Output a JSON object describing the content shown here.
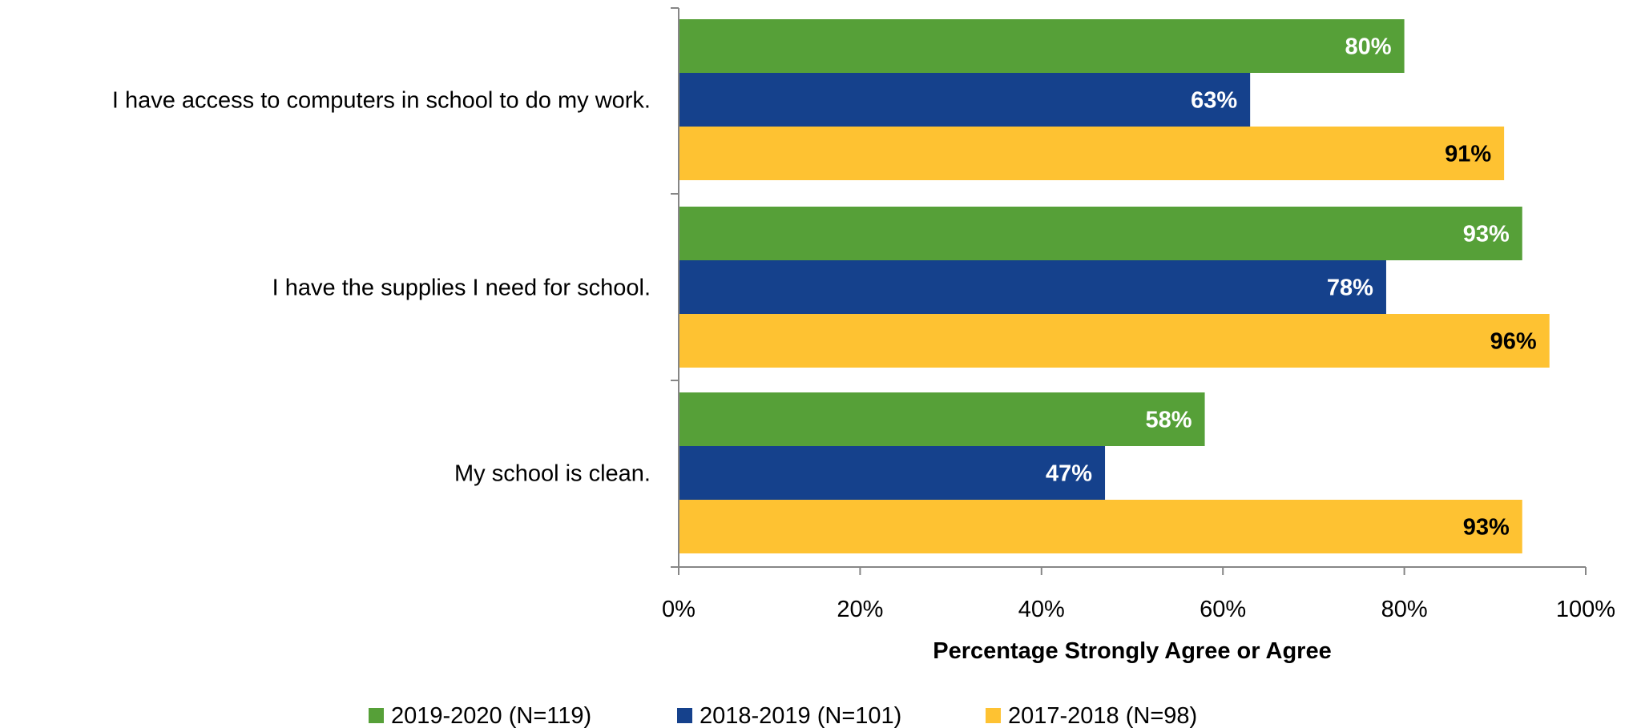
{
  "chart_data": {
    "type": "bar",
    "orientation": "horizontal",
    "categories": [
      "I have access to computers in school to do my work.",
      "I have the supplies I need for school.",
      "My school is clean."
    ],
    "series": [
      {
        "name": "2019-2020 (N=119)",
        "color": "#56a038",
        "label_color": "#ffffff",
        "values": [
          80,
          93,
          58
        ]
      },
      {
        "name": "2018-2019 (N=101)",
        "color": "#15418c",
        "label_color": "#ffffff",
        "values": [
          63,
          78,
          47
        ]
      },
      {
        "name": "2017-2018 (N=98)",
        "color": "#fec232",
        "label_color": "#000000",
        "values": [
          91,
          96,
          93
        ]
      }
    ],
    "value_suffix": "%",
    "xlabel": "Percentage Strongly Agree or Agree",
    "ylabel": "",
    "xlim": [
      0,
      100
    ],
    "xticks": [
      0,
      20,
      40,
      60,
      80,
      100
    ],
    "xtick_labels": [
      "0%",
      "20%",
      "40%",
      "60%",
      "80%",
      "100%"
    ],
    "grid": false,
    "legend_position": "bottom"
  }
}
